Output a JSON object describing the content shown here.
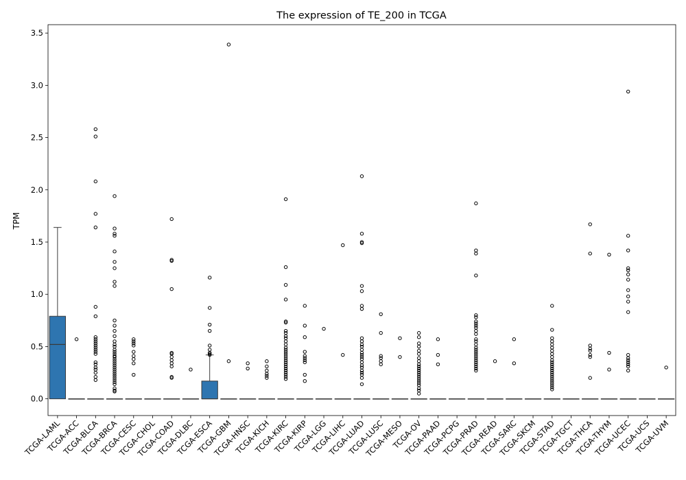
{
  "chart_data": {
    "type": "box",
    "title": "The expression of TE_200 in TCGA",
    "xlabel": "",
    "ylabel": "TPM",
    "ylim": [
      -0.16,
      3.58
    ],
    "yticks": [
      "0.0",
      "0.5",
      "1.0",
      "1.5",
      "2.0",
      "2.5",
      "3.0",
      "3.5"
    ],
    "grid": false,
    "legend": "none",
    "box_color": "#2e75b0",
    "categories": [
      "TCGA-LAML",
      "TCGA-ACC",
      "TCGA-BLCA",
      "TCGA-BRCA",
      "TCGA-CESC",
      "TCGA-CHOL",
      "TCGA-COAD",
      "TCGA-DLBC",
      "TCGA-ESCA",
      "TCGA-GBM",
      "TCGA-HNSC",
      "TCGA-KICH",
      "TCGA-KIRC",
      "TCGA-KIRP",
      "TCGA-LGG",
      "TCGA-LIHC",
      "TCGA-LUAD",
      "TCGA-LUSC",
      "TCGA-MESO",
      "TCGA-OV",
      "TCGA-PAAD",
      "TCGA-PCPG",
      "TCGA-PRAD",
      "TCGA-READ",
      "TCGA-SARC",
      "TCGA-SKCM",
      "TCGA-STAD",
      "TCGA-TGCT",
      "TCGA-THCA",
      "TCGA-THYM",
      "TCGA-UCEC",
      "TCGA-UCS",
      "TCGA-UVM"
    ],
    "boxes": [
      {
        "min": 0.0,
        "q1": 0.0,
        "median": 0.52,
        "q3": 0.79,
        "max": 1.64
      },
      {
        "min": 0,
        "q1": 0,
        "median": 0,
        "q3": 0,
        "max": 0
      },
      {
        "min": 0,
        "q1": 0,
        "median": 0,
        "q3": 0,
        "max": 0
      },
      {
        "min": 0,
        "q1": 0,
        "median": 0,
        "q3": 0,
        "max": 0
      },
      {
        "min": 0,
        "q1": 0,
        "median": 0,
        "q3": 0,
        "max": 0
      },
      {
        "min": 0,
        "q1": 0,
        "median": 0,
        "q3": 0,
        "max": 0
      },
      {
        "min": 0,
        "q1": 0,
        "median": 0,
        "q3": 0,
        "max": 0
      },
      {
        "min": 0,
        "q1": 0,
        "median": 0,
        "q3": 0,
        "max": 0
      },
      {
        "min": 0.0,
        "q1": 0.0,
        "median": 0.0,
        "q3": 0.17,
        "max": 0.42
      },
      {
        "min": 0,
        "q1": 0,
        "median": 0,
        "q3": 0,
        "max": 0
      },
      {
        "min": 0,
        "q1": 0,
        "median": 0,
        "q3": 0,
        "max": 0
      },
      {
        "min": 0,
        "q1": 0,
        "median": 0,
        "q3": 0,
        "max": 0
      },
      {
        "min": 0,
        "q1": 0,
        "median": 0,
        "q3": 0,
        "max": 0
      },
      {
        "min": 0,
        "q1": 0,
        "median": 0,
        "q3": 0,
        "max": 0
      },
      {
        "min": 0,
        "q1": 0,
        "median": 0,
        "q3": 0,
        "max": 0
      },
      {
        "min": 0,
        "q1": 0,
        "median": 0,
        "q3": 0,
        "max": 0
      },
      {
        "min": 0,
        "q1": 0,
        "median": 0,
        "q3": 0,
        "max": 0
      },
      {
        "min": 0,
        "q1": 0,
        "median": 0,
        "q3": 0,
        "max": 0
      },
      {
        "min": 0,
        "q1": 0,
        "median": 0,
        "q3": 0,
        "max": 0
      },
      {
        "min": 0,
        "q1": 0,
        "median": 0,
        "q3": 0,
        "max": 0
      },
      {
        "min": 0,
        "q1": 0,
        "median": 0,
        "q3": 0,
        "max": 0
      },
      {
        "min": 0,
        "q1": 0,
        "median": 0,
        "q3": 0,
        "max": 0
      },
      {
        "min": 0,
        "q1": 0,
        "median": 0,
        "q3": 0,
        "max": 0
      },
      {
        "min": 0,
        "q1": 0,
        "median": 0,
        "q3": 0,
        "max": 0
      },
      {
        "min": 0,
        "q1": 0,
        "median": 0,
        "q3": 0,
        "max": 0
      },
      {
        "min": 0,
        "q1": 0,
        "median": 0,
        "q3": 0,
        "max": 0
      },
      {
        "min": 0,
        "q1": 0,
        "median": 0,
        "q3": 0,
        "max": 0
      },
      {
        "min": 0,
        "q1": 0,
        "median": 0,
        "q3": 0,
        "max": 0
      },
      {
        "min": 0,
        "q1": 0,
        "median": 0,
        "q3": 0,
        "max": 0
      },
      {
        "min": 0,
        "q1": 0,
        "median": 0,
        "q3": 0,
        "max": 0
      },
      {
        "min": 0,
        "q1": 0,
        "median": 0,
        "q3": 0,
        "max": 0
      },
      {
        "min": 0,
        "q1": 0,
        "median": 0,
        "q3": 0,
        "max": 0
      },
      {
        "min": 0,
        "q1": 0,
        "median": 0,
        "q3": 0,
        "max": 0
      }
    ],
    "outliers": [
      [],
      [
        0.57
      ],
      [
        2.58,
        2.51,
        2.08,
        1.77,
        1.64,
        0.88,
        0.79,
        0.59,
        0.57,
        0.55,
        0.53,
        0.51,
        0.49,
        0.47,
        0.45,
        0.43,
        0.35,
        0.33,
        0.3,
        0.28,
        0.25,
        0.21,
        0.18
      ],
      [
        1.94,
        1.63,
        1.58,
        1.56,
        1.41,
        1.31,
        1.25,
        1.12,
        1.08,
        0.75,
        0.7,
        0.65,
        0.6,
        0.55,
        0.52,
        0.5,
        0.47,
        0.45,
        0.43,
        0.41,
        0.4,
        0.38,
        0.36,
        0.34,
        0.32,
        0.3,
        0.28,
        0.26,
        0.24,
        0.22,
        0.2,
        0.18,
        0.16,
        0.14,
        0.1,
        0.08,
        0.07
      ],
      [
        0.57,
        0.55,
        0.53,
        0.51,
        0.45,
        0.41,
        0.38,
        0.34,
        0.23
      ],
      [],
      [
        1.72,
        1.33,
        1.32,
        1.05,
        0.44,
        0.43,
        0.4,
        0.37,
        0.34,
        0.31,
        0.21,
        0.2
      ],
      [
        0.28
      ],
      [
        1.16,
        0.87,
        0.71,
        0.65,
        0.51,
        0.47,
        0.44,
        0.43,
        0.42
      ],
      [
        3.39,
        0.36
      ],
      [
        0.34,
        0.29
      ],
      [
        0.36,
        0.31,
        0.27,
        0.24,
        0.22,
        0.2
      ],
      [
        1.91,
        1.26,
        1.09,
        0.95,
        0.74,
        0.73,
        0.65,
        0.63,
        0.6,
        0.58,
        0.55,
        0.52,
        0.49,
        0.47,
        0.45,
        0.43,
        0.41,
        0.39,
        0.37,
        0.35,
        0.33,
        0.31,
        0.29,
        0.27,
        0.25,
        0.23,
        0.21,
        0.19
      ],
      [
        0.89,
        0.7,
        0.59,
        0.45,
        0.41,
        0.39,
        0.37,
        0.35,
        0.23,
        0.17
      ],
      [
        0.67
      ],
      [
        1.47,
        0.42
      ],
      [
        2.13,
        1.58,
        1.5,
        1.49,
        1.08,
        1.03,
        0.89,
        0.86,
        0.58,
        0.55,
        0.52,
        0.5,
        0.47,
        0.44,
        0.42,
        0.4,
        0.38,
        0.35,
        0.32,
        0.3,
        0.27,
        0.25,
        0.23,
        0.2,
        0.14
      ],
      [
        0.81,
        0.63,
        0.41,
        0.39,
        0.36,
        0.33
      ],
      [
        0.58,
        0.4
      ],
      [
        0.63,
        0.59,
        0.53,
        0.5,
        0.46,
        0.43,
        0.39,
        0.36,
        0.33,
        0.31,
        0.29,
        0.27,
        0.25,
        0.23,
        0.21,
        0.19,
        0.17,
        0.15,
        0.13,
        0.1,
        0.08,
        0.05
      ],
      [
        0.57,
        0.42,
        0.33
      ],
      [],
      [
        1.87,
        1.42,
        1.39,
        1.18,
        0.8,
        0.78,
        0.74,
        0.72,
        0.7,
        0.68,
        0.65,
        0.62,
        0.57,
        0.55,
        0.52,
        0.49,
        0.47,
        0.45,
        0.43,
        0.41,
        0.39,
        0.37,
        0.35,
        0.33,
        0.31,
        0.29,
        0.27
      ],
      [
        0.36
      ],
      [
        0.57,
        0.34
      ],
      [],
      [
        0.89,
        0.66,
        0.58,
        0.55,
        0.52,
        0.49,
        0.46,
        0.43,
        0.4,
        0.37,
        0.35,
        0.33,
        0.31,
        0.29,
        0.27,
        0.25,
        0.23,
        0.21,
        0.19,
        0.17,
        0.15,
        0.13,
        0.11,
        0.09
      ],
      [],
      [
        1.67,
        1.39,
        0.51,
        0.48,
        0.46,
        0.42,
        0.4,
        0.2
      ],
      [
        1.38,
        0.44,
        0.28
      ],
      [
        2.94,
        1.56,
        1.42,
        1.25,
        1.23,
        1.19,
        1.14,
        1.04,
        0.98,
        0.93,
        0.83,
        0.42,
        0.39,
        0.37,
        0.35,
        0.33,
        0.31,
        0.27
      ],
      [],
      [
        0.3
      ]
    ]
  }
}
